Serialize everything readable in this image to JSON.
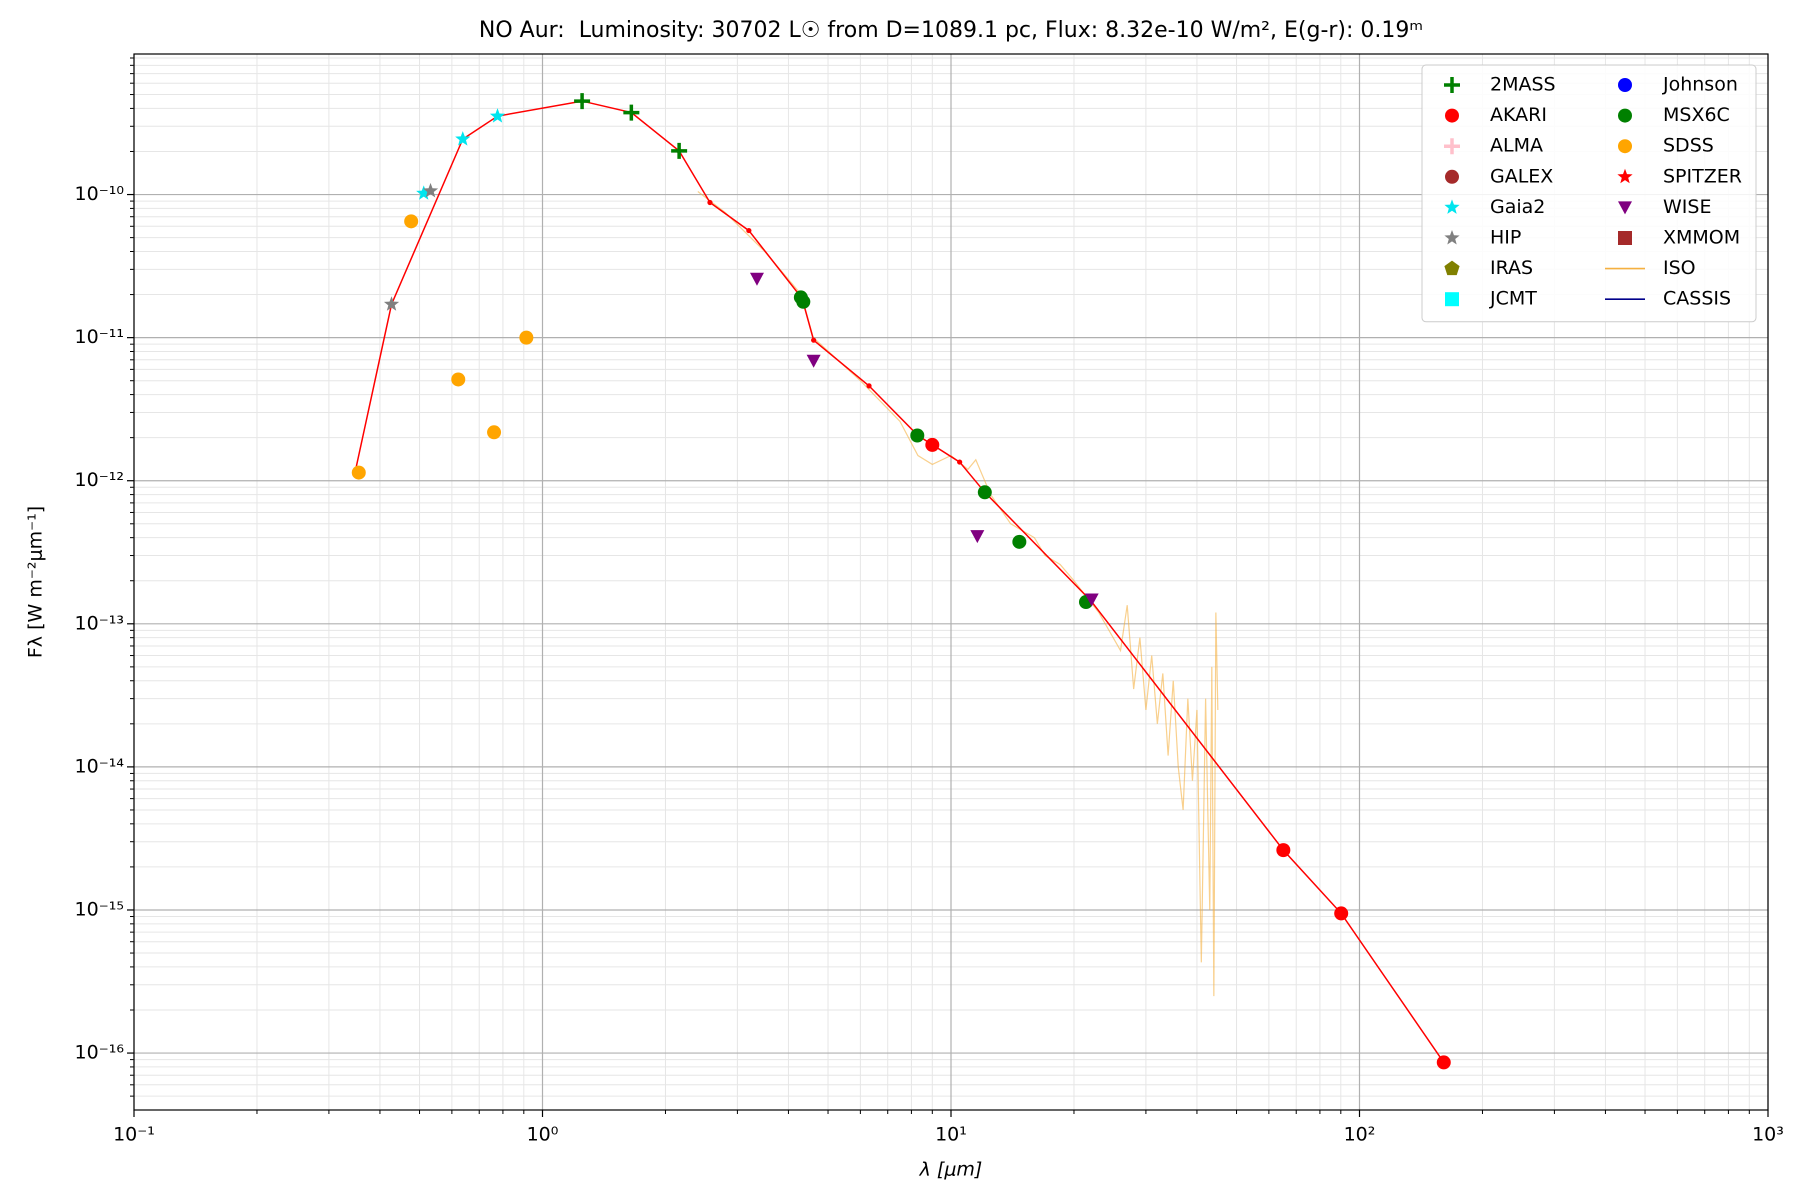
{
  "chart_data": {
    "type": "scatter",
    "title": "NO Aur:  Luminosity: 30702 L☉ from D=1089.1 pc, Flux: 8.32e-10 W/m², E(g-r): 0.19ᵐ",
    "x_label": "λ [μm]",
    "y_label": "Fλ [W m⁻²μm⁻¹]",
    "x_log": true,
    "y_log": true,
    "grid": true,
    "minor_grid": true,
    "legend": "upper right",
    "xlim": [
      0.1,
      1000
    ],
    "ylim": [
      4e-17,
      9.6e-10
    ],
    "xticks": [
      {
        "value": 0.1,
        "label": "10⁻¹"
      },
      {
        "value": 1,
        "label": "10⁰"
      },
      {
        "value": 10,
        "label": "10¹"
      },
      {
        "value": 100,
        "label": "10²"
      },
      {
        "value": 1000,
        "label": "10³"
      }
    ],
    "yticks": [
      {
        "value": 1e-16,
        "label": "10⁻¹⁶"
      },
      {
        "value": 1e-15,
        "label": "10⁻¹⁵"
      },
      {
        "value": 1e-14,
        "label": "10⁻¹⁴"
      },
      {
        "value": 1e-13,
        "label": "10⁻¹³"
      },
      {
        "value": 1e-12,
        "label": "10⁻¹²"
      },
      {
        "value": 1e-11,
        "label": "10⁻¹¹"
      },
      {
        "value": 1e-10,
        "label": "10⁻¹⁰"
      }
    ],
    "series": [
      {
        "name": "2MASS",
        "color": "#008000",
        "marker": "plus",
        "x": [
          1.25,
          1.65,
          2.16
        ],
        "values": [
          4.5e-10,
          3.74e-10,
          2.02e-10
        ]
      },
      {
        "name": "AKARI",
        "color": "#ff0000",
        "marker": "circle",
        "x": [
          9.0,
          65.1,
          90.2,
          160.8
        ],
        "values": [
          1.78e-12,
          2.62e-15,
          9.46e-16,
          8.6e-17
        ]
      },
      {
        "name": "ALMA",
        "color": "#ffc0cb",
        "marker": "plus",
        "x": [],
        "values": []
      },
      {
        "name": "GALEX",
        "color": "#a52a2a",
        "marker": "circle",
        "x": [],
        "values": []
      },
      {
        "name": "Gaia2",
        "color": "#00e5ee",
        "marker": "star",
        "x": [
          0.512,
          0.638,
          0.776
        ],
        "values": [
          1.02e-10,
          2.44e-10,
          3.53e-10
        ]
      },
      {
        "name": "HIP",
        "color": "#808080",
        "marker": "star",
        "x": [
          0.427,
          0.532
        ],
        "values": [
          1.71e-11,
          1.06e-10
        ]
      },
      {
        "name": "IRAS",
        "color": "#808000",
        "marker": "pentagon",
        "x": [],
        "values": []
      },
      {
        "name": "JCMT",
        "color": "#00ffff",
        "marker": "square",
        "x": [],
        "values": []
      },
      {
        "name": "Johnson",
        "color": "#0000ff",
        "marker": "circle",
        "x": [],
        "values": []
      },
      {
        "name": "MSX6C",
        "color": "#008000",
        "marker": "circle",
        "x": [
          4.29,
          4.35,
          8.27,
          12.1,
          14.7,
          21.4
        ],
        "values": [
          1.91e-11,
          1.78e-11,
          2.07e-12,
          8.3e-13,
          3.74e-13,
          1.42e-13
        ]
      },
      {
        "name": "SDSS",
        "color": "#ffa500",
        "marker": "circle",
        "x": [
          0.355,
          0.477,
          0.622,
          0.761,
          0.913
        ],
        "values": [
          1.14e-12,
          6.5e-11,
          5.1e-12,
          2.18e-12,
          1e-11
        ]
      },
      {
        "name": "SPITZER",
        "color": "#ff0000",
        "marker": "star",
        "x": [],
        "values": []
      },
      {
        "name": "WISE",
        "color": "#800080",
        "marker": "triangle-down",
        "x": [
          3.35,
          4.61,
          11.6,
          22.1
        ],
        "values": [
          2.58e-11,
          6.9e-12,
          4.1e-13,
          1.48e-13
        ]
      },
      {
        "name": "XMMOM",
        "color": "#a52a2a",
        "marker": "square",
        "x": [],
        "values": []
      },
      {
        "name": "ISO",
        "color": "#f5b041",
        "marker": "line",
        "x": [
          2.4,
          2.8,
          3.5,
          4.3,
          4.6,
          6.0,
          7.5,
          8.3,
          9.0,
          10.0,
          11.0,
          11.5,
          12.5,
          14.0,
          16.0,
          17.0,
          18.5,
          20.0,
          23,
          26,
          27,
          28,
          29,
          30,
          31,
          32,
          33,
          34,
          35,
          36,
          37,
          38,
          39,
          40,
          41,
          42,
          43,
          43.5,
          44,
          44.5,
          45
        ],
        "values": [
          1.05e-10,
          7.5e-11,
          4e-11,
          2e-11,
          1e-11,
          5e-12,
          2.6e-12,
          1.5e-12,
          1.3e-12,
          1.5e-12,
          1.2e-12,
          1.4e-12,
          8e-13,
          5e-13,
          4e-13,
          3e-13,
          2.6e-13,
          2e-13,
          1.2e-13,
          6.5e-14,
          1.35e-13,
          3.5e-14,
          8e-14,
          2.5e-14,
          6e-14,
          2e-14,
          4.5e-14,
          1.2e-14,
          4e-14,
          1e-14,
          5e-15,
          3e-14,
          8e-15,
          2.5e-14,
          4.3e-16,
          3e-14,
          1e-15,
          5e-14,
          2.5e-16,
          1.2e-13,
          2.5e-14
        ]
      },
      {
        "name": "CASSIS",
        "color": "#00008b",
        "marker": "line",
        "x": [],
        "values": []
      },
      {
        "color": "#ff0000",
        "marker": "line-dot",
        "x": [
          0.348,
          0.427,
          0.638,
          0.776,
          1.25,
          1.65,
          2.16,
          2.57,
          3.2,
          4.32,
          4.61,
          6.3,
          8.3,
          10.5,
          12.1,
          22.0,
          65.1,
          90.2,
          160.8
        ],
        "values": [
          1.16e-12,
          1.71e-11,
          2.44e-10,
          3.53e-10,
          4.5e-10,
          3.74e-10,
          2.02e-10,
          8.8e-11,
          5.6e-11,
          1.88e-11,
          9.6e-12,
          4.6e-12,
          2.07e-12,
          1.35e-12,
          8.3e-13,
          1.45e-13,
          2.62e-15,
          9.46e-16,
          8.6e-17
        ]
      }
    ]
  }
}
